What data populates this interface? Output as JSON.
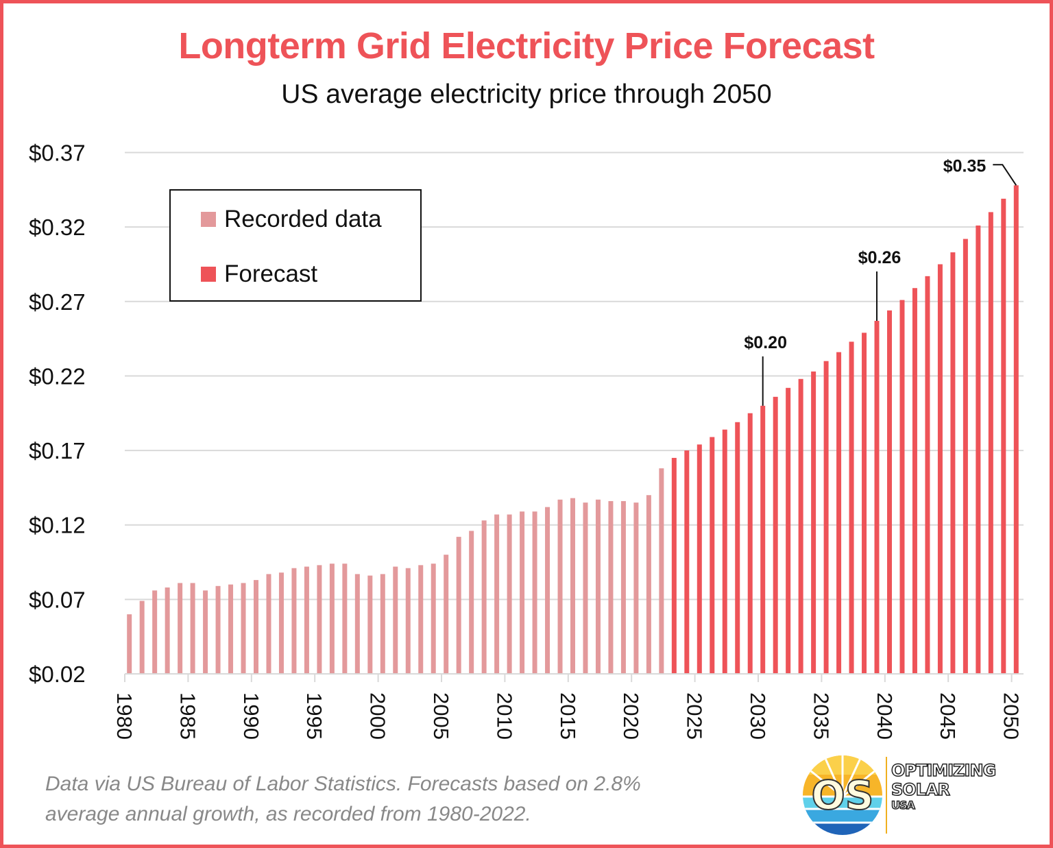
{
  "title": "Longterm Grid Electricity Price Forecast",
  "subtitle": "US average electricity price through 2050",
  "footnote": {
    "line1": "Data via US Bureau of Labor Statistics. Forecasts based on 2.8%",
    "line2": "average annual growth, as recorded from 1980-2022."
  },
  "logo": {
    "line1": "OPTIMIZING",
    "line2": "SOLAR",
    "line3": "USA",
    "monogram": "OS"
  },
  "colors": {
    "accent": "#ee5358",
    "recorded": "#e3999b",
    "forecast": "#ee5358",
    "grid": "#d9d9d9",
    "footnote": "#888888"
  },
  "chart_data": {
    "type": "bar",
    "title": "Longterm Grid Electricity Price Forecast",
    "subtitle": "US average electricity price through 2050",
    "xlabel": "",
    "ylabel": "",
    "ylim": [
      0.02,
      0.37
    ],
    "yticks": [
      0.02,
      0.07,
      0.12,
      0.17,
      0.22,
      0.27,
      0.32,
      0.37
    ],
    "ytick_labels": [
      "$0.02",
      "$0.07",
      "$0.12",
      "$0.17",
      "$0.22",
      "$0.27",
      "$0.32",
      "$0.37"
    ],
    "xticks": [
      1980,
      1985,
      1990,
      1995,
      2000,
      2005,
      2010,
      2015,
      2020,
      2025,
      2030,
      2035,
      2040,
      2045,
      2050
    ],
    "xtick_labels": [
      "1980",
      "1985",
      "1990",
      "1995",
      "2000",
      "2005",
      "2010",
      "2015",
      "2020",
      "2025",
      "2030",
      "2035",
      "2040",
      "2045",
      "2050"
    ],
    "grid": true,
    "legend_position": "top-left",
    "series": [
      {
        "name": "Recorded data",
        "color": "#e3999b",
        "start_year": 1980,
        "values": [
          0.06,
          0.069,
          0.076,
          0.078,
          0.081,
          0.081,
          0.076,
          0.079,
          0.08,
          0.081,
          0.083,
          0.087,
          0.088,
          0.091,
          0.092,
          0.093,
          0.094,
          0.094,
          0.087,
          0.086,
          0.087,
          0.092,
          0.091,
          0.093,
          0.094,
          0.1,
          0.112,
          0.116,
          0.123,
          0.127,
          0.127,
          0.129,
          0.129,
          0.132,
          0.137,
          0.138,
          0.135,
          0.137,
          0.136,
          0.136,
          0.135,
          0.14,
          0.158
        ]
      },
      {
        "name": "Forecast",
        "color": "#ee5358",
        "start_year": 2023,
        "values": [
          0.165,
          0.17,
          0.174,
          0.179,
          0.184,
          0.189,
          0.195,
          0.2,
          0.206,
          0.212,
          0.218,
          0.223,
          0.23,
          0.236,
          0.243,
          0.249,
          0.257,
          0.264,
          0.271,
          0.279,
          0.287,
          0.295,
          0.303,
          0.312,
          0.321,
          0.33,
          0.339,
          0.348
        ]
      }
    ],
    "annotations": [
      {
        "year": 2030,
        "label": "$0.20"
      },
      {
        "year": 2039,
        "label": "$0.26"
      },
      {
        "year": 2050,
        "label": "$0.35"
      }
    ]
  }
}
